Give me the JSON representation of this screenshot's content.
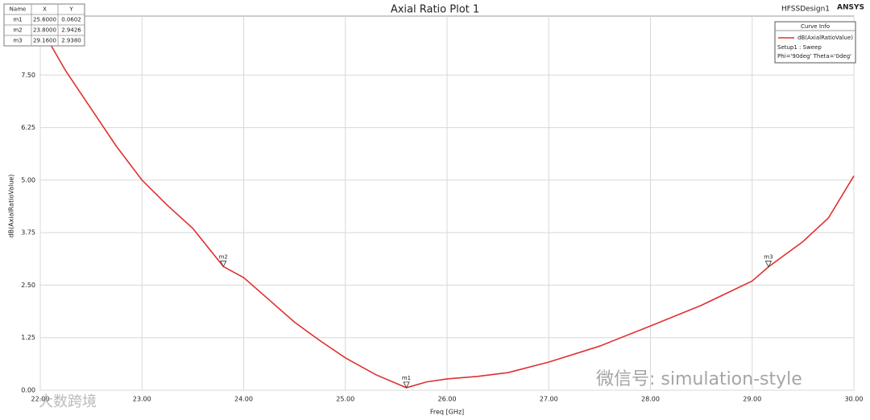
{
  "chart_data": {
    "type": "line",
    "title": "Axial Ratio Plot 1",
    "design_name": "HFSSDesign1",
    "brand": "ANSYS",
    "x_label": "Freq [GHz]",
    "y_label": "dB(AxialRatioValue)",
    "x": [
      22.0,
      22.25,
      22.5,
      22.75,
      23.0,
      23.25,
      23.5,
      23.8,
      24.0,
      24.25,
      24.5,
      24.75,
      25.0,
      25.3,
      25.6,
      25.8,
      26.0,
      26.3,
      26.6,
      27.0,
      27.5,
      28.0,
      28.5,
      29.0,
      29.16,
      29.5,
      29.75,
      30.0
    ],
    "series": [
      {
        "name": "dB(AxialRatioValue)",
        "color": "#e03030",
        "values": [
          8.65,
          7.6,
          6.7,
          5.8,
          5.0,
          4.4,
          3.85,
          2.9426,
          2.68,
          2.15,
          1.62,
          1.18,
          0.77,
          0.37,
          0.0602,
          0.2,
          0.27,
          0.33,
          0.42,
          0.67,
          1.05,
          1.53,
          2.02,
          2.6,
          2.938,
          3.54,
          4.1,
          5.1
        ]
      }
    ],
    "legend_title": "Curve Info",
    "legend_lines": [
      "Setup1 : Sweep",
      "Phi='90deg' Theta='0deg'"
    ],
    "xlim": [
      22.0,
      30.0
    ],
    "ylim": [
      0,
      8.75
    ],
    "xticks": [
      {
        "value": 22,
        "label": "22.00"
      },
      {
        "value": 23,
        "label": "23.00"
      },
      {
        "value": 24,
        "label": "24.00"
      },
      {
        "value": 25,
        "label": "25.00"
      },
      {
        "value": 26,
        "label": "26.00"
      },
      {
        "value": 27,
        "label": "27.00"
      },
      {
        "value": 28,
        "label": "28.00"
      },
      {
        "value": 29,
        "label": "29.00"
      },
      {
        "value": 30,
        "label": "30.00"
      }
    ],
    "yticks": [
      {
        "value": 0,
        "label": "0.00"
      },
      {
        "value": 1.25,
        "label": "1.25"
      },
      {
        "value": 2.5,
        "label": "2.50"
      },
      {
        "value": 3.75,
        "label": "3.75"
      },
      {
        "value": 5,
        "label": "5.00"
      },
      {
        "value": 6.25,
        "label": "6.25"
      },
      {
        "value": 7.5,
        "label": "7.50"
      }
    ],
    "grid": true,
    "marker_table_header": [
      "Name",
      "X",
      "Y"
    ],
    "markers": [
      {
        "name": "m1",
        "x": 25.6,
        "y": 0.0602,
        "x_label": "25.6000",
        "y_label": "0.0602"
      },
      {
        "name": "m2",
        "x": 23.8,
        "y": 2.9426,
        "x_label": "23.8000",
        "y_label": "2.9426"
      },
      {
        "name": "m3",
        "x": 29.16,
        "y": 2.938,
        "x_label": "29.1600",
        "y_label": "2.9380"
      }
    ],
    "watermarks": [
      "微信号: simulation-style",
      "大数跨境"
    ]
  }
}
